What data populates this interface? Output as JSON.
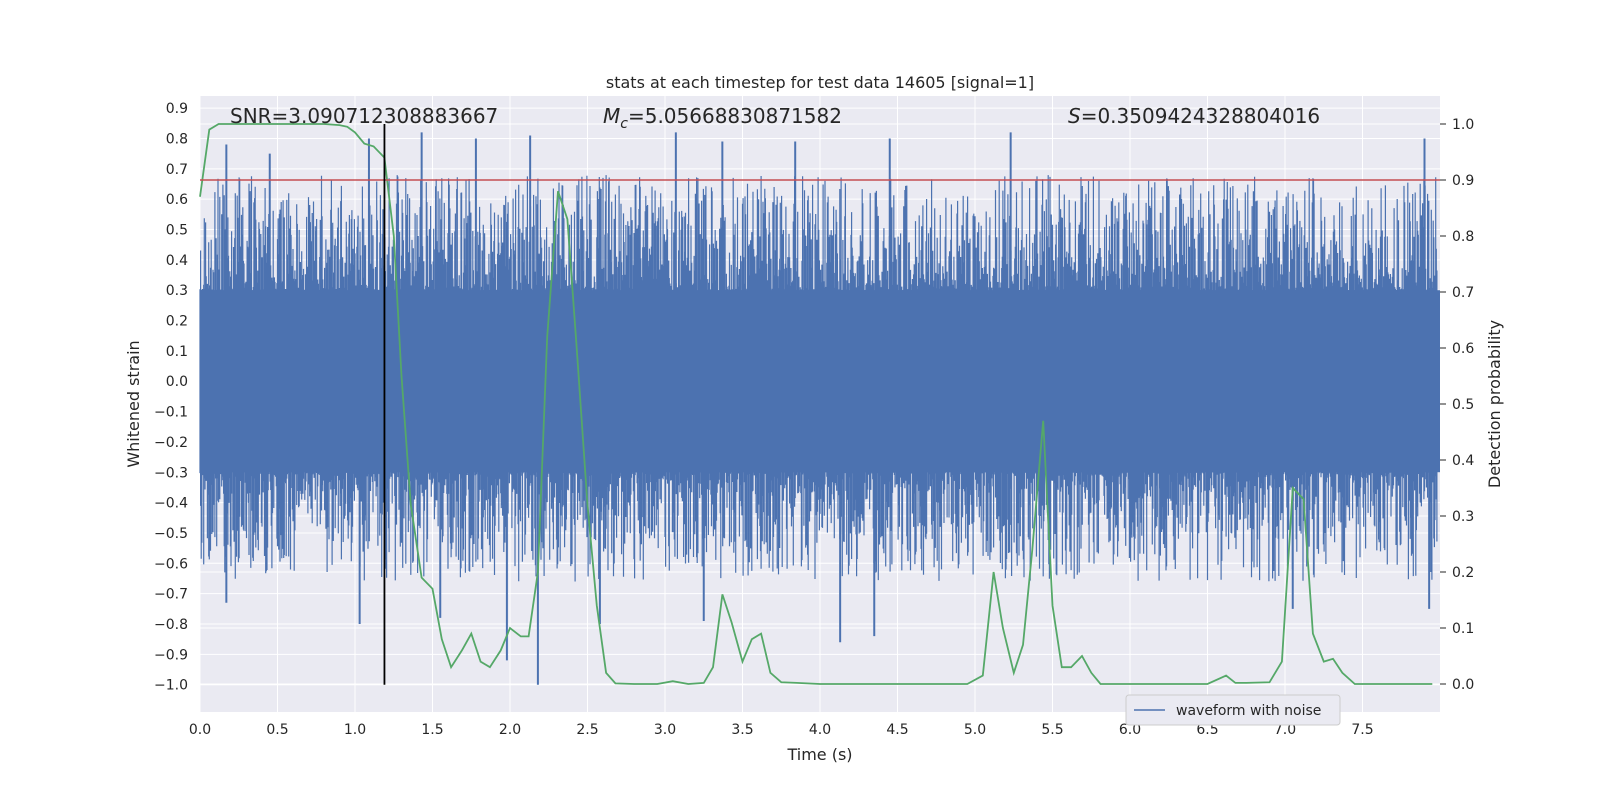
{
  "chart_data": {
    "type": "line",
    "title": "stats at each timestep for test data 14605 [signal=1]",
    "xlabel": "Time (s)",
    "ylabel": "Whitened strain",
    "y2label": "Detection probability",
    "xlim": [
      0.0,
      8.0
    ],
    "ylim": [
      -1.09,
      0.94
    ],
    "y2lim": [
      -0.05,
      1.05
    ],
    "x_ticks": [
      0.0,
      0.5,
      1.0,
      1.5,
      2.0,
      2.5,
      3.0,
      3.5,
      4.0,
      4.5,
      5.0,
      5.5,
      6.0,
      6.5,
      7.0,
      7.5
    ],
    "y_ticks": [
      0.9,
      0.8,
      0.7,
      0.6,
      0.5,
      0.4,
      0.3,
      0.2,
      0.1,
      0.0,
      -0.1,
      -0.2,
      -0.3,
      -0.4,
      -0.5,
      -0.6,
      -0.7,
      -0.8,
      -0.9,
      -1.0
    ],
    "y2_ticks": [
      1.0,
      0.9,
      0.8,
      0.7,
      0.6,
      0.5,
      0.4,
      0.3,
      0.2,
      0.1,
      0.0
    ],
    "grid": true,
    "legend_position": "lower-right",
    "annotations": {
      "snr": "SNR=3.090712308883667",
      "mc_value": "=5.05668830871582",
      "s_value": "=0.3509424328804016"
    },
    "threshold_line": {
      "y2": 0.9,
      "color": "#c44e52"
    },
    "marker_line": {
      "x": 1.19,
      "color": "#000000"
    },
    "series": [
      {
        "name": "waveform with noise",
        "axis": "left",
        "color": "#4c72b0",
        "description_values": {
          "band_low": -0.3,
          "band_high": 0.3,
          "spikes": [
            {
              "x": 0.17,
              "y": 0.78
            },
            {
              "x": 0.45,
              "y": 0.75
            },
            {
              "x": 1.09,
              "y": 0.8
            },
            {
              "x": 1.43,
              "y": 0.82
            },
            {
              "x": 1.78,
              "y": 0.8
            },
            {
              "x": 2.13,
              "y": 0.81
            },
            {
              "x": 3.07,
              "y": 0.82
            },
            {
              "x": 3.37,
              "y": 0.79
            },
            {
              "x": 3.84,
              "y": 0.79
            },
            {
              "x": 4.45,
              "y": 0.8
            },
            {
              "x": 5.23,
              "y": 0.82
            },
            {
              "x": 7.9,
              "y": 0.8
            },
            {
              "x": 0.17,
              "y": -0.73
            },
            {
              "x": 1.03,
              "y": -0.8
            },
            {
              "x": 1.55,
              "y": -0.78
            },
            {
              "x": 1.98,
              "y": -0.92
            },
            {
              "x": 2.18,
              "y": -1.0
            },
            {
              "x": 2.58,
              "y": -0.8
            },
            {
              "x": 3.25,
              "y": -0.79
            },
            {
              "x": 4.13,
              "y": -0.86
            },
            {
              "x": 4.35,
              "y": -0.84
            },
            {
              "x": 7.05,
              "y": -0.75
            },
            {
              "x": 7.93,
              "y": -0.75
            }
          ]
        }
      },
      {
        "name": "",
        "axis": "right",
        "color": "#55a868",
        "x": [
          0.0,
          0.06,
          0.12,
          0.2,
          0.3,
          0.4,
          0.5,
          0.6,
          0.7,
          0.8,
          0.9,
          0.95,
          1.0,
          1.06,
          1.12,
          1.19,
          1.25,
          1.3,
          1.36,
          1.43,
          1.5,
          1.56,
          1.62,
          1.69,
          1.75,
          1.81,
          1.87,
          1.94,
          2.0,
          2.07,
          2.12,
          2.18,
          2.24,
          2.31,
          2.37,
          2.43,
          2.5,
          2.56,
          2.62,
          2.68,
          2.8,
          2.95,
          3.05,
          3.15,
          3.25,
          3.31,
          3.37,
          3.43,
          3.5,
          3.56,
          3.62,
          3.68,
          3.75,
          3.85,
          4.0,
          4.2,
          4.4,
          4.6,
          4.8,
          4.95,
          5.05,
          5.12,
          5.18,
          5.25,
          5.31,
          5.37,
          5.44,
          5.5,
          5.56,
          5.62,
          5.69,
          5.75,
          5.81,
          5.95,
          6.3,
          6.5,
          6.62,
          6.68,
          6.75,
          6.9,
          6.98,
          7.05,
          7.12,
          7.18,
          7.25,
          7.31,
          7.37,
          7.45,
          7.6,
          7.95
        ],
        "values": [
          0.87,
          0.99,
          1.0,
          1.0,
          1.0,
          1.0,
          1.0,
          1.0,
          1.0,
          1.0,
          0.998,
          0.995,
          0.985,
          0.965,
          0.96,
          0.94,
          0.8,
          0.55,
          0.32,
          0.19,
          0.17,
          0.08,
          0.03,
          0.06,
          0.09,
          0.04,
          0.03,
          0.06,
          0.1,
          0.085,
          0.085,
          0.2,
          0.62,
          0.88,
          0.83,
          0.6,
          0.32,
          0.14,
          0.02,
          0.001,
          0.0,
          0.0,
          0.005,
          0.0,
          0.002,
          0.03,
          0.16,
          0.11,
          0.04,
          0.08,
          0.09,
          0.02,
          0.003,
          0.002,
          0.0,
          0.0,
          0.0,
          0.0,
          0.0,
          0.0,
          0.015,
          0.2,
          0.1,
          0.02,
          0.07,
          0.24,
          0.47,
          0.14,
          0.03,
          0.03,
          0.05,
          0.02,
          0.0,
          0.0,
          0.0,
          0.0,
          0.015,
          0.002,
          0.002,
          0.003,
          0.04,
          0.35,
          0.33,
          0.09,
          0.04,
          0.045,
          0.02,
          0.0,
          0.0,
          0.0
        ]
      }
    ]
  }
}
